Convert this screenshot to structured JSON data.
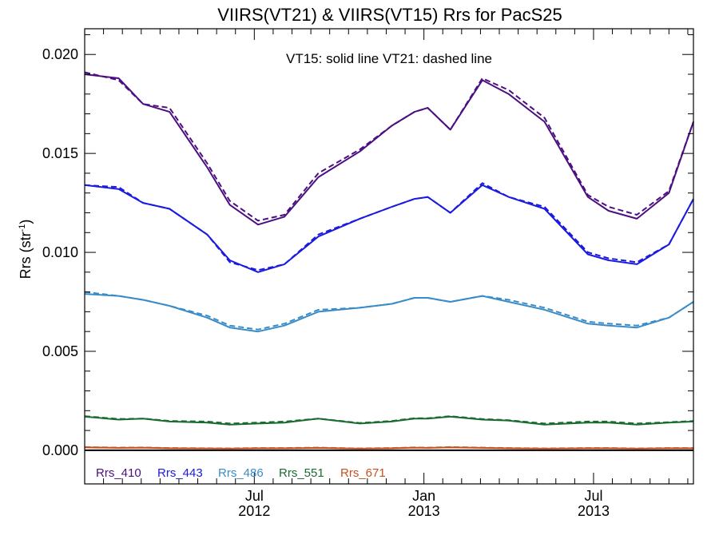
{
  "chart_data": {
    "type": "line",
    "title": "VIIRS(VT21) & VIIRS(VT15)  Rrs for PacS25",
    "ylabel_main": "Rrs (str",
    "ylabel_sup": "-1",
    "ylabel_close": ")",
    "annotation": "VT15: solid line   VT21: dashed line",
    "ylim": [
      -0.0017,
      0.0213
    ],
    "xlim": [
      0,
      32.3
    ],
    "yticks": [
      {
        "v": 0.0,
        "label": "0.000"
      },
      {
        "v": 0.005,
        "label": "0.005"
      },
      {
        "v": 0.01,
        "label": "0.010"
      },
      {
        "v": 0.015,
        "label": "0.015"
      },
      {
        "v": 0.02,
        "label": "0.020"
      }
    ],
    "xticks": [
      {
        "v": 9,
        "label1": "Jul",
        "label2": "2012"
      },
      {
        "v": 18,
        "label1": "Jan",
        "label2": "2013"
      },
      {
        "v": 27,
        "label1": "Jul",
        "label2": "2013"
      }
    ],
    "x": [
      0,
      1,
      2,
      3,
      4,
      5,
      6,
      7,
      8,
      9,
      10,
      11,
      12,
      13,
      14,
      15,
      16,
      17,
      18,
      19,
      20,
      21,
      22,
      23,
      24,
      25,
      26,
      27,
      28,
      29,
      30,
      31,
      32
    ],
    "x_start_month": "Jan 2012",
    "zero_line": true,
    "series": [
      {
        "name": "Rrs_410",
        "color": "#4b0f82",
        "solid": [
          0.019,
          0.0188,
          0.0175,
          0.0171,
          0.0143,
          0.0124,
          0.0114,
          0.0118,
          0.0138,
          0.0151,
          0.0164,
          0.0171,
          0.0173,
          0.0162,
          0.0187,
          0.018,
          0.0166,
          0.0128,
          0.0121,
          0.0117,
          0.013,
          0.0166
        ],
        "dashed": [
          0.0191,
          0.0187,
          0.0175,
          0.0173,
          0.0145,
          0.0126,
          0.0116,
          0.0119,
          0.014,
          0.0152,
          0.0164,
          0.0171,
          0.0173,
          0.0162,
          0.0188,
          0.0182,
          0.0168,
          0.0129,
          0.0123,
          0.0119,
          0.0131,
          0.0166
        ]
      },
      {
        "name": "Rrs_443",
        "color": "#1a1ae0",
        "solid": [
          0.0134,
          0.0132,
          0.0125,
          0.0122,
          0.0109,
          0.0096,
          0.009,
          0.0094,
          0.0108,
          0.0117,
          0.0123,
          0.0127,
          0.0128,
          0.012,
          0.0134,
          0.0128,
          0.0122,
          0.0099,
          0.0096,
          0.0094,
          0.0104,
          0.0127
        ],
        "dashed": [
          0.0134,
          0.0133,
          0.0125,
          0.0122,
          0.0109,
          0.0095,
          0.0091,
          0.0094,
          0.0109,
          0.0117,
          0.0123,
          0.0127,
          0.0128,
          0.012,
          0.0135,
          0.0128,
          0.0123,
          0.01,
          0.0097,
          0.0095,
          0.0104,
          0.0127
        ]
      },
      {
        "name": "Rrs_486",
        "color": "#3a8cc8",
        "solid": [
          0.0079,
          0.0078,
          0.0076,
          0.0073,
          0.0067,
          0.0062,
          0.006,
          0.0063,
          0.007,
          0.0072,
          0.0074,
          0.0077,
          0.0077,
          0.0075,
          0.0078,
          0.0075,
          0.0071,
          0.0064,
          0.0063,
          0.0062,
          0.0067,
          0.0075
        ],
        "dashed": [
          0.008,
          0.0078,
          0.0076,
          0.0073,
          0.0068,
          0.0063,
          0.0061,
          0.0064,
          0.0071,
          0.0072,
          0.0074,
          0.0077,
          0.0077,
          0.0075,
          0.0078,
          0.0076,
          0.0072,
          0.0065,
          0.0064,
          0.0063,
          0.0067,
          0.0075
        ]
      },
      {
        "name": "Rrs_551",
        "color": "#1a6b30",
        "solid": [
          0.0017,
          0.00155,
          0.0016,
          0.00145,
          0.0014,
          0.0013,
          0.00135,
          0.0014,
          0.0016,
          0.00135,
          0.00145,
          0.0016,
          0.0016,
          0.0017,
          0.00155,
          0.0015,
          0.0013,
          0.0014,
          0.0014,
          0.0013,
          0.0014,
          0.00145
        ],
        "dashed": [
          0.00172,
          0.00158,
          0.0016,
          0.00148,
          0.00145,
          0.00135,
          0.0014,
          0.00145,
          0.0016,
          0.00138,
          0.00148,
          0.00162,
          0.00162,
          0.00172,
          0.00158,
          0.00152,
          0.00135,
          0.00145,
          0.00145,
          0.00135,
          0.00142,
          0.00148
        ]
      },
      {
        "name": "Rrs_671",
        "color": "#c8501e",
        "solid": [
          0.00015,
          0.00012,
          0.00013,
          0.0001,
          9e-05,
          8e-05,
          0.0001,
          0.0001,
          0.00012,
          8e-05,
          0.0001,
          0.00013,
          0.00012,
          0.00015,
          0.00012,
          0.0001,
          8e-05,
          0.0001,
          0.0001,
          8e-05,
          0.0001,
          0.0001
        ],
        "dashed": [
          0.00016,
          0.00013,
          0.00014,
          0.00011,
          0.0001,
          9e-05,
          0.00011,
          0.00011,
          0.00013,
          9e-05,
          0.00011,
          0.00014,
          0.00013,
          0.00016,
          0.00013,
          0.00011,
          9e-05,
          0.00011,
          0.00011,
          9e-05,
          0.00011,
          0.00011
        ]
      }
    ],
    "sample_x": [
      0,
      1.8,
      3.1,
      4.5,
      6.5,
      7.7,
      9.2,
      10.6,
      12.4,
      14.6,
      16.3,
      17.5,
      18.2,
      19.4,
      21.1,
      22.5,
      24.4,
      26.7,
      27.8,
      29.3,
      31.0,
      32.3
    ]
  }
}
